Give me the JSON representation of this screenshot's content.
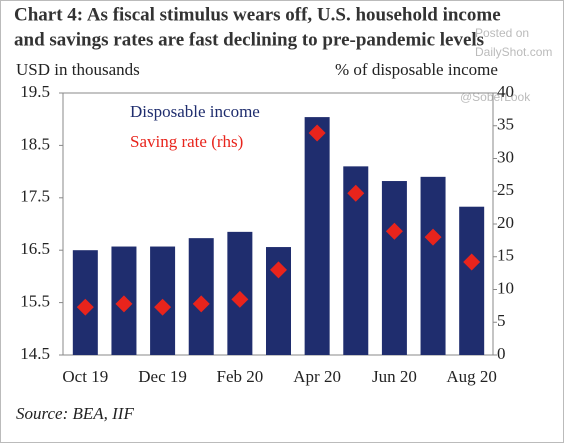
{
  "chart_data": {
    "type": "bar",
    "title": [
      "Chart 4:  As fiscal stimulus wears off, U.S. household income",
      "and savings rates are fast declining to pre-pandemic levels"
    ],
    "y_label": "USD in thousands",
    "y2_label": "% of disposable income",
    "source": "Source: BEA, IIF",
    "watermark": [
      "Posted on",
      "DailyShot.com",
      "@SoberLook"
    ],
    "categories": [
      "Oct 19",
      null,
      "Dec 19",
      null,
      "Feb 20",
      null,
      "Apr 20",
      null,
      "Jun 20",
      null,
      "Aug 20"
    ],
    "series": [
      {
        "name": "Disposable income",
        "type": "bar",
        "axis": "y",
        "color": "#1f2d6e",
        "values": [
          16.5,
          16.57,
          16.57,
          16.73,
          16.85,
          16.56,
          19.04,
          18.1,
          17.82,
          17.9,
          17.33
        ]
      },
      {
        "name": "Saving rate (rhs)",
        "type": "scatter",
        "axis": "y2",
        "color": "#e8241c",
        "values": [
          7.3,
          7.8,
          7.3,
          7.8,
          8.5,
          13.0,
          33.9,
          24.7,
          18.9,
          18.0,
          14.2
        ]
      }
    ],
    "ylim": [
      14.5,
      19.5
    ],
    "yticks": [
      14.5,
      15.5,
      16.5,
      17.5,
      18.5,
      19.5
    ],
    "y2lim": [
      0,
      40
    ],
    "y2ticks": [
      0,
      5,
      10,
      15,
      20,
      25,
      30,
      35,
      40
    ]
  }
}
